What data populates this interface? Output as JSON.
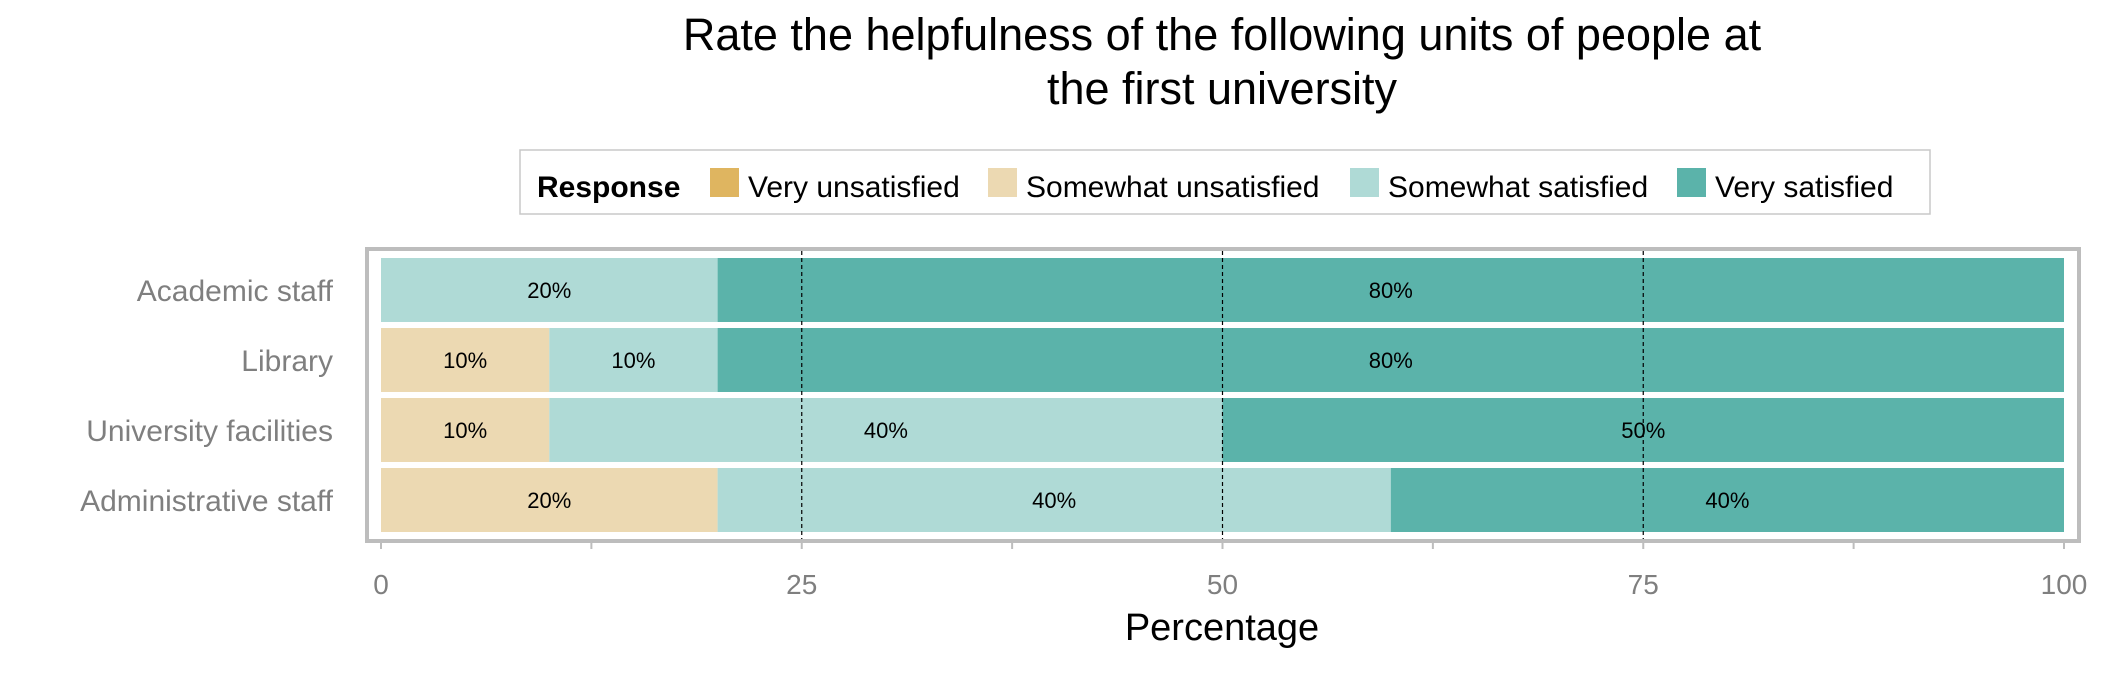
{
  "chart_data": {
    "type": "bar",
    "orientation": "horizontal",
    "stacked": true,
    "title_lines": [
      "Rate the helpfulness of the following units of people at",
      "the first university"
    ],
    "legend": {
      "title": "Response",
      "placement": "top"
    },
    "categories": [
      "Academic staff",
      "Library",
      "University facilities",
      "Administrative staff"
    ],
    "series": [
      {
        "name": "Very unsatisfied",
        "color": "#dfb560",
        "values": [
          0,
          0,
          0,
          0
        ]
      },
      {
        "name": "Somewhat unsatisfied",
        "color": "#ecd9b2",
        "values": [
          0,
          10,
          10,
          20
        ]
      },
      {
        "name": "Somewhat satisfied",
        "color": "#afdad6",
        "values": [
          20,
          10,
          40,
          40
        ]
      },
      {
        "name": "Very satisfied",
        "color": "#5bb3aa",
        "values": [
          80,
          80,
          50,
          40
        ]
      }
    ],
    "xlabel": "Percentage",
    "ylabel": "",
    "xlim": [
      0,
      100
    ],
    "xticks": [
      0,
      25,
      50,
      75,
      100
    ],
    "grid": "dashed vertical lines at 25, 50, 75"
  }
}
